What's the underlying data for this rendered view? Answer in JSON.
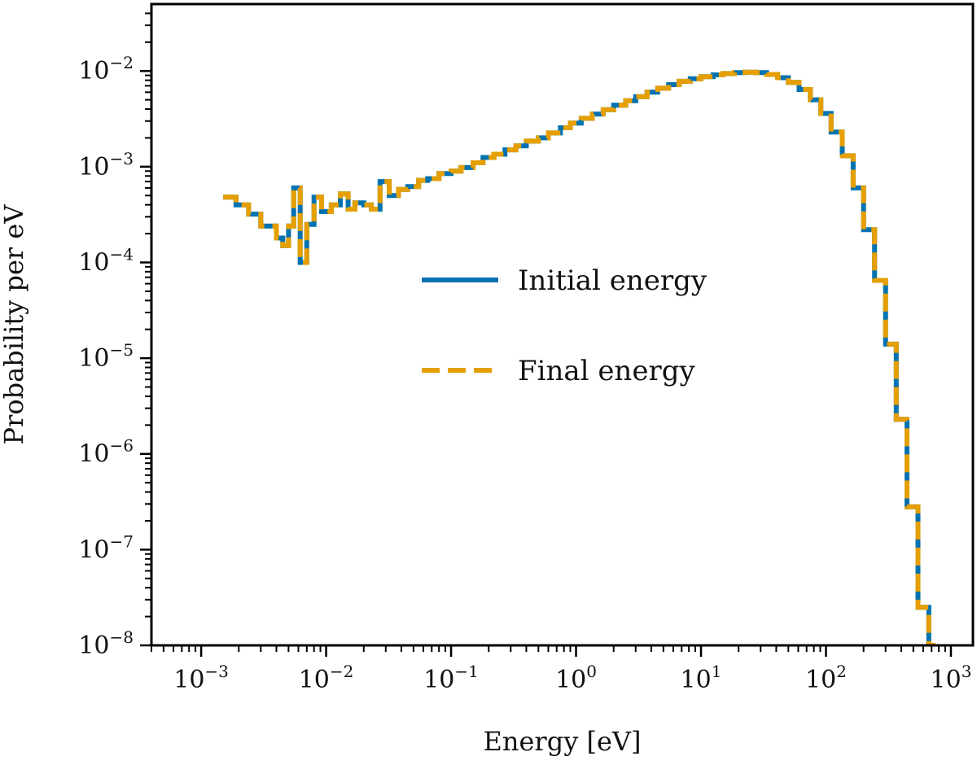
{
  "chart_data": {
    "type": "line",
    "xlabel": "Energy [eV]",
    "ylabel": "Probability per eV",
    "xscale": "log",
    "yscale": "log",
    "xlim": [
      0.0004,
      1500
    ],
    "ylim": [
      1e-08,
      0.05
    ],
    "x_ticks": [
      {
        "base": "10",
        "exp": "−3",
        "value": 0.001
      },
      {
        "base": "10",
        "exp": "−2",
        "value": 0.01
      },
      {
        "base": "10",
        "exp": "−1",
        "value": 0.1
      },
      {
        "base": "10",
        "exp": "0",
        "value": 1
      },
      {
        "base": "10",
        "exp": "1",
        "value": 10
      },
      {
        "base": "10",
        "exp": "2",
        "value": 100
      },
      {
        "base": "10",
        "exp": "3",
        "value": 1000
      }
    ],
    "y_ticks": [
      {
        "base": "10",
        "exp": "−8",
        "value": 1e-08
      },
      {
        "base": "10",
        "exp": "−7",
        "value": 1e-07
      },
      {
        "base": "10",
        "exp": "−6",
        "value": 1e-06
      },
      {
        "base": "10",
        "exp": "−5",
        "value": 1e-05
      },
      {
        "base": "10",
        "exp": "−4",
        "value": 0.0001
      },
      {
        "base": "10",
        "exp": "−3",
        "value": 0.001
      },
      {
        "base": "10",
        "exp": "−2",
        "value": 0.01
      }
    ],
    "grid": false,
    "legend_position": "center",
    "series": [
      {
        "name": "Initial energy",
        "style": "solid",
        "color": "#0072B2",
        "points": [
          [
            0.0015,
            0.00048
          ],
          [
            0.0019,
            0.0004
          ],
          [
            0.0024,
            0.00032
          ],
          [
            0.003,
            0.00024
          ],
          [
            0.004,
            0.00018
          ],
          [
            0.0045,
            0.00015
          ],
          [
            0.005,
            0.00024
          ],
          [
            0.0055,
            0.0006
          ],
          [
            0.0062,
            0.0001
          ],
          [
            0.007,
            0.00025
          ],
          [
            0.008,
            0.00048
          ],
          [
            0.0092,
            0.00034
          ],
          [
            0.011,
            0.0004
          ],
          [
            0.013,
            0.00052
          ],
          [
            0.015,
            0.00036
          ],
          [
            0.017,
            0.00042
          ],
          [
            0.02,
            0.0004
          ],
          [
            0.023,
            0.00036
          ],
          [
            0.027,
            0.0007
          ],
          [
            0.032,
            0.0005
          ],
          [
            0.038,
            0.00058
          ],
          [
            0.045,
            0.00062
          ],
          [
            0.055,
            0.00072
          ],
          [
            0.065,
            0.00075
          ],
          [
            0.08,
            0.00085
          ],
          [
            0.1,
            0.0009
          ],
          [
            0.12,
            0.00098
          ],
          [
            0.15,
            0.0011
          ],
          [
            0.18,
            0.00125
          ],
          [
            0.22,
            0.00135
          ],
          [
            0.27,
            0.0015
          ],
          [
            0.33,
            0.00165
          ],
          [
            0.4,
            0.00185
          ],
          [
            0.5,
            0.002
          ],
          [
            0.6,
            0.00225
          ],
          [
            0.75,
            0.00255
          ],
          [
            0.9,
            0.00285
          ],
          [
            1.1,
            0.0032
          ],
          [
            1.35,
            0.00355
          ],
          [
            1.65,
            0.00395
          ],
          [
            2.0,
            0.0044
          ],
          [
            2.5,
            0.0049
          ],
          [
            3.0,
            0.0054
          ],
          [
            3.7,
            0.006
          ],
          [
            4.5,
            0.0066
          ],
          [
            5.5,
            0.0072
          ],
          [
            6.7,
            0.0078
          ],
          [
            8.2,
            0.0083
          ],
          [
            10,
            0.0087
          ],
          [
            12.5,
            0.0091
          ],
          [
            15,
            0.0094
          ],
          [
            18.5,
            0.0096
          ],
          [
            22.5,
            0.0097
          ],
          [
            27.5,
            0.0096
          ],
          [
            33.5,
            0.0092
          ],
          [
            41,
            0.0085
          ],
          [
            50,
            0.0076
          ],
          [
            61,
            0.0064
          ],
          [
            75,
            0.005
          ],
          [
            91,
            0.0036
          ],
          [
            110,
            0.0023
          ],
          [
            135,
            0.0013
          ],
          [
            165,
            0.0006
          ],
          [
            200,
            0.00022
          ],
          [
            245,
            6.5e-05
          ],
          [
            300,
            1.4e-05
          ],
          [
            365,
            2.3e-06
          ],
          [
            445,
            2.8e-07
          ],
          [
            545,
            2.5e-08
          ],
          [
            665,
            2e-09
          ],
          [
            750,
            0.0
          ]
        ]
      },
      {
        "name": "Final energy",
        "style": "dashed",
        "color": "#E69F00",
        "points": [
          [
            0.0015,
            0.00048
          ],
          [
            0.0019,
            0.0004
          ],
          [
            0.0024,
            0.00032
          ],
          [
            0.003,
            0.00024
          ],
          [
            0.004,
            0.00018
          ],
          [
            0.0045,
            0.00015
          ],
          [
            0.005,
            0.00024
          ],
          [
            0.0055,
            0.0006
          ],
          [
            0.0062,
            0.0001
          ],
          [
            0.007,
            0.00025
          ],
          [
            0.008,
            0.00048
          ],
          [
            0.0092,
            0.00034
          ],
          [
            0.011,
            0.0004
          ],
          [
            0.013,
            0.00052
          ],
          [
            0.015,
            0.00036
          ],
          [
            0.017,
            0.00042
          ],
          [
            0.02,
            0.0004
          ],
          [
            0.023,
            0.00036
          ],
          [
            0.027,
            0.0007
          ],
          [
            0.032,
            0.0005
          ],
          [
            0.038,
            0.00058
          ],
          [
            0.045,
            0.00062
          ],
          [
            0.055,
            0.00072
          ],
          [
            0.065,
            0.00075
          ],
          [
            0.08,
            0.00085
          ],
          [
            0.1,
            0.0009
          ],
          [
            0.12,
            0.00098
          ],
          [
            0.15,
            0.0011
          ],
          [
            0.18,
            0.00125
          ],
          [
            0.22,
            0.00135
          ],
          [
            0.27,
            0.0015
          ],
          [
            0.33,
            0.00165
          ],
          [
            0.4,
            0.00185
          ],
          [
            0.5,
            0.002
          ],
          [
            0.6,
            0.00225
          ],
          [
            0.75,
            0.00255
          ],
          [
            0.9,
            0.00285
          ],
          [
            1.1,
            0.0032
          ],
          [
            1.35,
            0.00355
          ],
          [
            1.65,
            0.00395
          ],
          [
            2.0,
            0.0044
          ],
          [
            2.5,
            0.0049
          ],
          [
            3.0,
            0.0054
          ],
          [
            3.7,
            0.006
          ],
          [
            4.5,
            0.0066
          ],
          [
            5.5,
            0.0072
          ],
          [
            6.7,
            0.0078
          ],
          [
            8.2,
            0.0083
          ],
          [
            10,
            0.0087
          ],
          [
            12.5,
            0.0091
          ],
          [
            15,
            0.0094
          ],
          [
            18.5,
            0.0096
          ],
          [
            22.5,
            0.0097
          ],
          [
            27.5,
            0.0096
          ],
          [
            33.5,
            0.0092
          ],
          [
            41,
            0.0085
          ],
          [
            50,
            0.0076
          ],
          [
            61,
            0.0064
          ],
          [
            75,
            0.005
          ],
          [
            91,
            0.0036
          ],
          [
            110,
            0.0023
          ],
          [
            135,
            0.0013
          ],
          [
            165,
            0.0006
          ],
          [
            200,
            0.00022
          ],
          [
            245,
            6.5e-05
          ],
          [
            300,
            1.4e-05
          ],
          [
            365,
            2.3e-06
          ],
          [
            445,
            2.8e-07
          ],
          [
            545,
            2.5e-08
          ],
          [
            665,
            2e-09
          ],
          [
            750,
            0.0
          ]
        ]
      }
    ]
  }
}
